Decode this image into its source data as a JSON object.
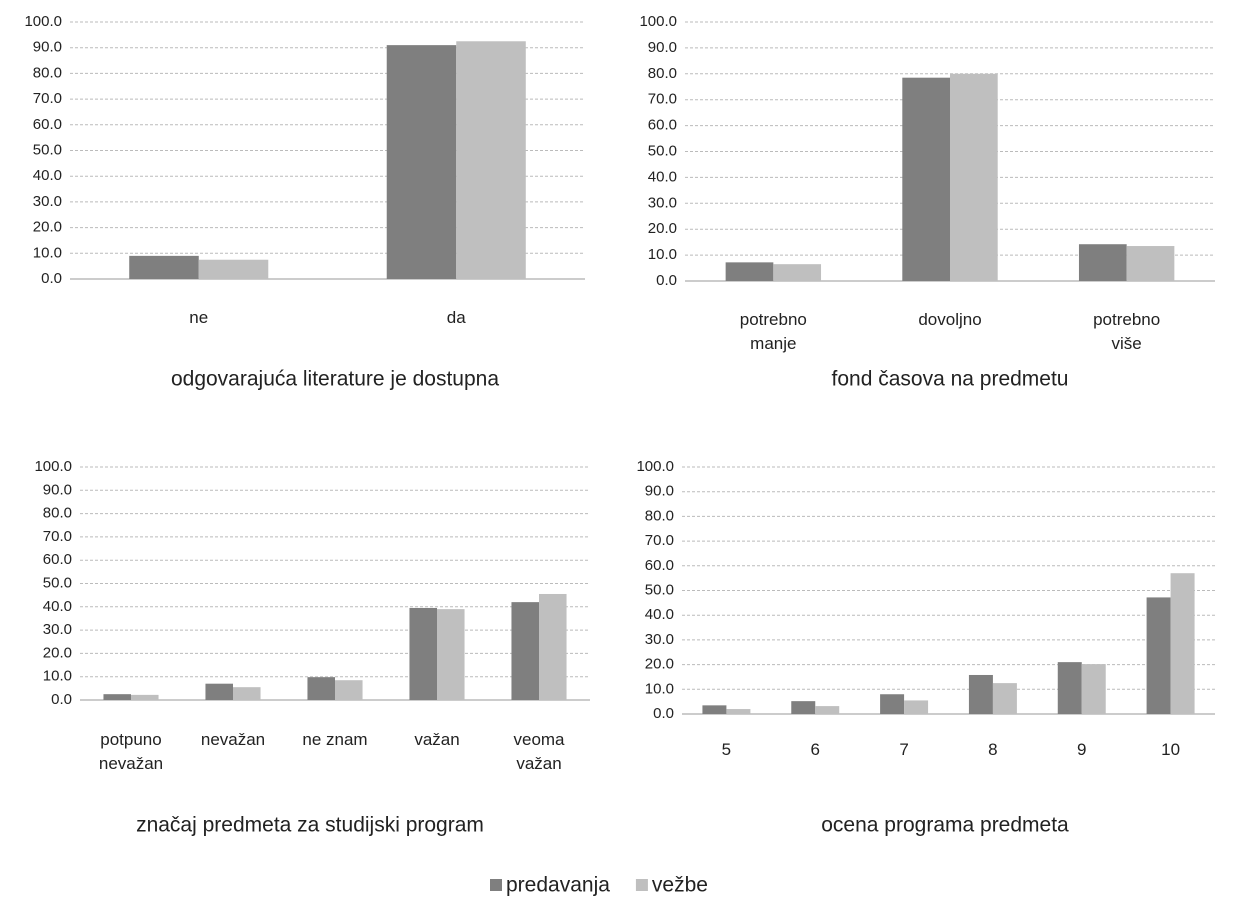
{
  "legend": {
    "series": [
      {
        "name": "predavanja",
        "color": "#7f7f7f"
      },
      {
        "name": "vežbe",
        "color": "#bfbfbf"
      }
    ]
  },
  "chart_data": [
    {
      "type": "bar",
      "title": "odgovarajuća literature je dostupna",
      "categories": [
        "ne",
        "da"
      ],
      "series": [
        {
          "values": [
            9.0,
            91.0
          ]
        },
        {
          "values": [
            7.5,
            92.5
          ]
        }
      ],
      "ylim": [
        0,
        100
      ],
      "yticks": [
        {
          "value": 0,
          "label": "0.0"
        },
        {
          "value": 10,
          "label": "10.0"
        },
        {
          "value": 20,
          "label": "20.0"
        },
        {
          "value": 30,
          "label": "30.0"
        },
        {
          "value": 40,
          "label": "40.0"
        },
        {
          "value": 50,
          "label": "50.0"
        },
        {
          "value": 60,
          "label": "60.0"
        },
        {
          "value": 70,
          "label": "70.0"
        },
        {
          "value": 80,
          "label": "80.0"
        },
        {
          "value": 90,
          "label": "90.0"
        },
        {
          "value": 100,
          "label": "100.0"
        }
      ],
      "grid": true
    },
    {
      "type": "bar",
      "title": "fond časova na predmetu",
      "categories": [
        "potrebno manje",
        "dovoljno",
        "potrebno više"
      ],
      "series": [
        {
          "values": [
            7.2,
            78.5,
            14.2
          ]
        },
        {
          "values": [
            6.5,
            80.0,
            13.5
          ]
        }
      ],
      "ylim": [
        0,
        100
      ],
      "yticks": [
        {
          "value": 0,
          "label": "0.0"
        },
        {
          "value": 10,
          "label": "10.0"
        },
        {
          "value": 20,
          "label": "20.0"
        },
        {
          "value": 30,
          "label": "30.0"
        },
        {
          "value": 40,
          "label": "40.0"
        },
        {
          "value": 50,
          "label": "50.0"
        },
        {
          "value": 60,
          "label": "60.0"
        },
        {
          "value": 70,
          "label": "70.0"
        },
        {
          "value": 80,
          "label": "80.0"
        },
        {
          "value": 90,
          "label": "90.0"
        },
        {
          "value": 100,
          "label": "100.0"
        }
      ],
      "grid": true
    },
    {
      "type": "bar",
      "title": "značaj predmeta za studijski program",
      "categories": [
        "potpuno nevažan",
        "nevažan",
        "ne znam",
        "važan",
        "veoma važan"
      ],
      "series": [
        {
          "values": [
            2.5,
            7.0,
            9.8,
            39.5,
            42.0
          ]
        },
        {
          "values": [
            2.2,
            5.5,
            8.5,
            39.0,
            45.5
          ]
        }
      ],
      "ylim": [
        0,
        100
      ],
      "yticks": [
        {
          "value": 0,
          "label": "0.0"
        },
        {
          "value": 10,
          "label": "10.0"
        },
        {
          "value": 20,
          "label": "20.0"
        },
        {
          "value": 30,
          "label": "30.0"
        },
        {
          "value": 40,
          "label": "40.0"
        },
        {
          "value": 50,
          "label": "50.0"
        },
        {
          "value": 60,
          "label": "60.0"
        },
        {
          "value": 70,
          "label": "70.0"
        },
        {
          "value": 80,
          "label": "80.0"
        },
        {
          "value": 90,
          "label": "90.0"
        },
        {
          "value": 100,
          "label": "100.0"
        }
      ],
      "grid": true
    },
    {
      "type": "bar",
      "title": "ocena programa predmeta",
      "categories": [
        "5",
        "6",
        "7",
        "8",
        "9",
        "10"
      ],
      "series": [
        {
          "values": [
            3.5,
            5.2,
            8.0,
            15.8,
            21.0,
            47.2
          ]
        },
        {
          "values": [
            2.0,
            3.2,
            5.5,
            12.5,
            20.2,
            57.0
          ]
        }
      ],
      "ylim": [
        0,
        100
      ],
      "yticks": [
        {
          "value": 0,
          "label": "0.0"
        },
        {
          "value": 10,
          "label": "10.0"
        },
        {
          "value": 20,
          "label": "20.0"
        },
        {
          "value": 30,
          "label": "30.0"
        },
        {
          "value": 40,
          "label": "40.0"
        },
        {
          "value": 50,
          "label": "50.0"
        },
        {
          "value": 60,
          "label": "60.0"
        },
        {
          "value": 70,
          "label": "70.0"
        },
        {
          "value": 80,
          "label": "80.0"
        },
        {
          "value": 90,
          "label": "90.0"
        },
        {
          "value": 100,
          "label": "100.0"
        }
      ],
      "grid": true
    }
  ]
}
